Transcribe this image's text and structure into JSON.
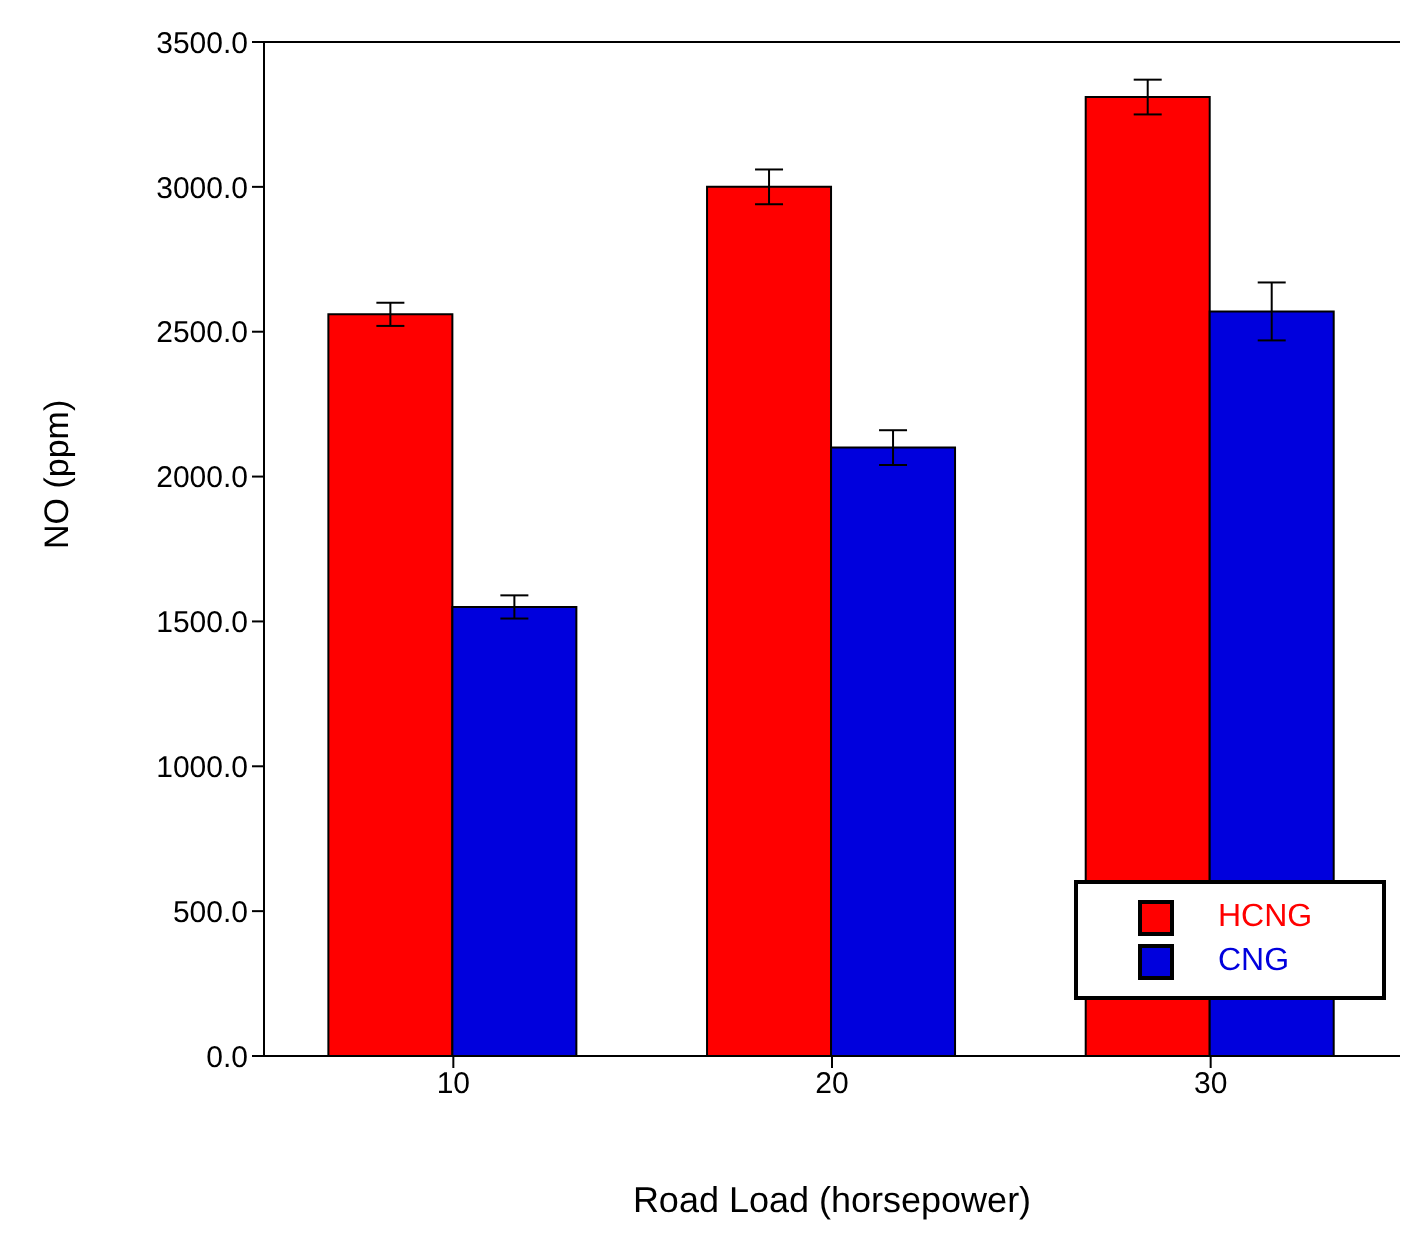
{
  "chart_data": {
    "type": "bar",
    "xlabel": "Road Load (horsepower)",
    "ylabel": "NO (ppm)",
    "categories": [
      "10",
      "20",
      "30"
    ],
    "series": [
      {
        "name": "HCNG",
        "color": "#ff0000",
        "values": [
          2560,
          3000,
          3310
        ],
        "errors": [
          40,
          60,
          60
        ]
      },
      {
        "name": "CNG",
        "color": "#0000dd",
        "values": [
          1550,
          2100,
          2570
        ],
        "errors": [
          40,
          60,
          100
        ]
      }
    ],
    "ylim": [
      0,
      3500
    ],
    "yticks": [
      {
        "value": 0,
        "label": "0.0"
      },
      {
        "value": 500,
        "label": "500.0"
      },
      {
        "value": 1000,
        "label": "1000.0"
      },
      {
        "value": 1500,
        "label": "1500.0"
      },
      {
        "value": 2000,
        "label": "2000.0"
      },
      {
        "value": 2500,
        "label": "2500.0"
      },
      {
        "value": 3000,
        "label": "3000.0"
      },
      {
        "value": 3500,
        "label": "3500.0"
      }
    ],
    "grid": false,
    "legend": "bottom right"
  }
}
